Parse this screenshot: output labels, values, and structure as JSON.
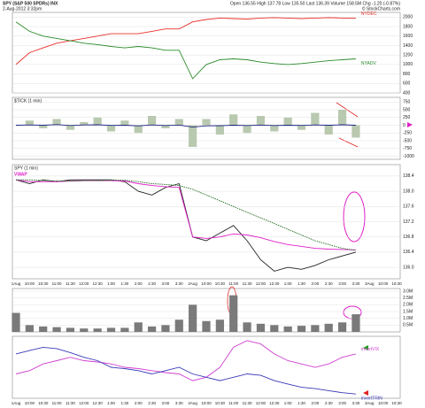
{
  "chart_data": [
    {
      "type": "line",
      "title": "SPY (S&P 500 SPDRs) INX",
      "subtitle": "2-Aug-2012 3:32pm",
      "annotations": [
        "Open 136.55 High 137.78 Low 135.50 Last 136.39 Volume 158.5M Chg -1.20 (-0.87%)",
        "© StockCharts.com"
      ],
      "ylim": [
        400,
        2100
      ],
      "yticks": [
        400,
        600,
        800,
        1000,
        1200,
        1400,
        1600,
        1800,
        2000
      ],
      "grid": true,
      "series": [
        {
          "name": "NYDEC",
          "color": "#e8302a",
          "values": [
            1000,
            1250,
            1350,
            1450,
            1500,
            1550,
            1600,
            1650,
            1650,
            1650,
            1700,
            1750,
            1750,
            1900,
            1950,
            1980,
            1970,
            1960,
            1980,
            1990,
            1980,
            1970,
            1980,
            1990,
            1980,
            1980,
            null,
            null,
            null
          ]
        },
        {
          "name": "NYADV",
          "color": "#2a8a2a",
          "values": [
            1900,
            1700,
            1600,
            1550,
            1500,
            1450,
            1420,
            1380,
            1350,
            1380,
            1350,
            1300,
            1300,
            700,
            1000,
            1100,
            1120,
            1100,
            1050,
            1020,
            1000,
            1020,
            1050,
            1080,
            1100,
            1120,
            null,
            null,
            null
          ]
        }
      ]
    },
    {
      "type": "bar",
      "title": "$TICK (1 min)",
      "ylim": [
        -1100,
        900
      ],
      "yticks": [
        -1000,
        -750,
        -500,
        -250,
        0,
        250,
        500,
        750
      ],
      "grid": true,
      "series": [
        {
          "type": "bar",
          "color": "#b9c9b0",
          "values": [
            0,
            150,
            -100,
            200,
            -150,
            100,
            250,
            -200,
            150,
            -250,
            300,
            -100,
            200,
            -700,
            200,
            -300,
            350,
            -250,
            300,
            -200,
            250,
            -150,
            400,
            -300,
            500,
            -400,
            null,
            null,
            null
          ]
        },
        {
          "type": "line",
          "color": "#1a237e",
          "values": [
            0,
            10,
            0,
            20,
            -10,
            10,
            15,
            -5,
            0,
            -20,
            10,
            -10,
            5,
            -60,
            -20,
            -15,
            0,
            -10,
            5,
            -10,
            0,
            -5,
            10,
            0,
            15,
            0,
            null,
            null,
            null
          ]
        }
      ]
    },
    {
      "type": "line",
      "title": "SPY (1 min)",
      "annotations": [
        "VWAP"
      ],
      "categories": [
        "1Aug",
        "10:00",
        "10:30",
        "11:00",
        "11:30",
        "12:00",
        "12:30",
        "1:00",
        "1:30",
        "2:00",
        "2:30",
        "3:00",
        "3:30",
        "2Aug",
        "10:00",
        "10:30",
        "11:00",
        "11:30",
        "12:00",
        "12:30",
        "1:00",
        "1:30",
        "2:00",
        "2:30",
        "3:00",
        "3:30",
        "3Aug",
        "10:00",
        "10:30"
      ],
      "ylim": [
        135.7,
        138.7
      ],
      "yticks": [
        {
          "value": 136,
          "label": "136.0"
        },
        136.4,
        136.8,
        137.2,
        137.6,
        {
          "value": 138,
          "label": "138.0"
        },
        138.4
      ],
      "grid": true,
      "series": [
        {
          "color": "#222222",
          "values": [
            138.3,
            138.2,
            138.3,
            138.25,
            138.3,
            138.3,
            138.3,
            138.3,
            138.25,
            138.0,
            137.9,
            138.1,
            138.2,
            136.8,
            136.7,
            136.9,
            137.1,
            136.7,
            136.2,
            135.9,
            136.0,
            135.95,
            136.05,
            136.2,
            136.3,
            136.4,
            null,
            null,
            null
          ]
        },
        {
          "color": "#e020c8",
          "values": [
            138.3,
            138.25,
            138.25,
            138.25,
            138.27,
            138.28,
            138.28,
            138.28,
            138.27,
            138.2,
            138.15,
            138.12,
            138.1,
            136.8,
            136.76,
            136.8,
            136.88,
            136.85,
            136.78,
            136.68,
            136.6,
            136.55,
            136.5,
            136.48,
            136.47,
            136.46,
            null,
            null,
            null
          ]
        },
        {
          "color": "#1f6b1f",
          "dash": true,
          "values": [
            138.3,
            138.3,
            138.28,
            138.27,
            138.27,
            138.28,
            138.28,
            138.29,
            138.29,
            138.25,
            138.2,
            138.18,
            138.15,
            138.05,
            137.9,
            137.75,
            137.6,
            137.45,
            137.3,
            137.15,
            137.0,
            136.85,
            136.7,
            136.6,
            136.5,
            136.45,
            null,
            null,
            null
          ]
        }
      ]
    },
    {
      "type": "bar",
      "ylim": [
        0,
        3200000
      ],
      "yticks": [
        {
          "value": 500000,
          "label": "0.5M"
        },
        {
          "value": 1000000,
          "label": "1.0M"
        },
        {
          "value": 1500000,
          "label": "1.5M"
        },
        {
          "value": 2000000,
          "label": "2.0M"
        },
        {
          "value": 2500000,
          "label": "2.5M"
        },
        {
          "value": 3000000,
          "label": "3.0M"
        }
      ],
      "grid": true,
      "series": [
        {
          "color": "#7a7a7a",
          "values": [
            1400000,
            500000,
            400000,
            350000,
            300000,
            250000,
            250000,
            300000,
            300000,
            700000,
            400000,
            500000,
            900000,
            2000000,
            800000,
            900000,
            2700000,
            700000,
            600000,
            500000,
            400000,
            450000,
            500000,
            600000,
            700000,
            1300000,
            null,
            null,
            null
          ]
        }
      ]
    },
    {
      "type": "line",
      "categories": [
        "1Aug",
        "10:00",
        "10:30",
        "11:00",
        "11:30",
        "12:00",
        "12:30",
        "1:00",
        "1:30",
        "2:00",
        "2:30",
        "3:00",
        "3:30",
        "2Aug",
        "10:00",
        "10:30",
        "11:00",
        "11:30",
        "12:00",
        "12:30",
        "1:00",
        "1:30",
        "2:00",
        "2:30",
        "3:00",
        "3:30",
        "3Aug",
        "10:00",
        "10:30"
      ],
      "series": [
        {
          "name": "invertVIX",
          "color": "#d040d0",
          "values": [
            40,
            45,
            55,
            60,
            65,
            60,
            58,
            55,
            50,
            48,
            45,
            42,
            40,
            30,
            35,
            50,
            80,
            90,
            85,
            70,
            60,
            55,
            50,
            55,
            65,
            70,
            null,
            null,
            null
          ]
        },
        {
          "name": "invertTRIN",
          "color": "#3a3ab8",
          "values": [
            70,
            75,
            80,
            78,
            72,
            65,
            60,
            50,
            48,
            45,
            40,
            45,
            50,
            40,
            35,
            30,
            35,
            40,
            38,
            30,
            25,
            20,
            18,
            15,
            12,
            10,
            null,
            null,
            null
          ]
        }
      ]
    }
  ]
}
